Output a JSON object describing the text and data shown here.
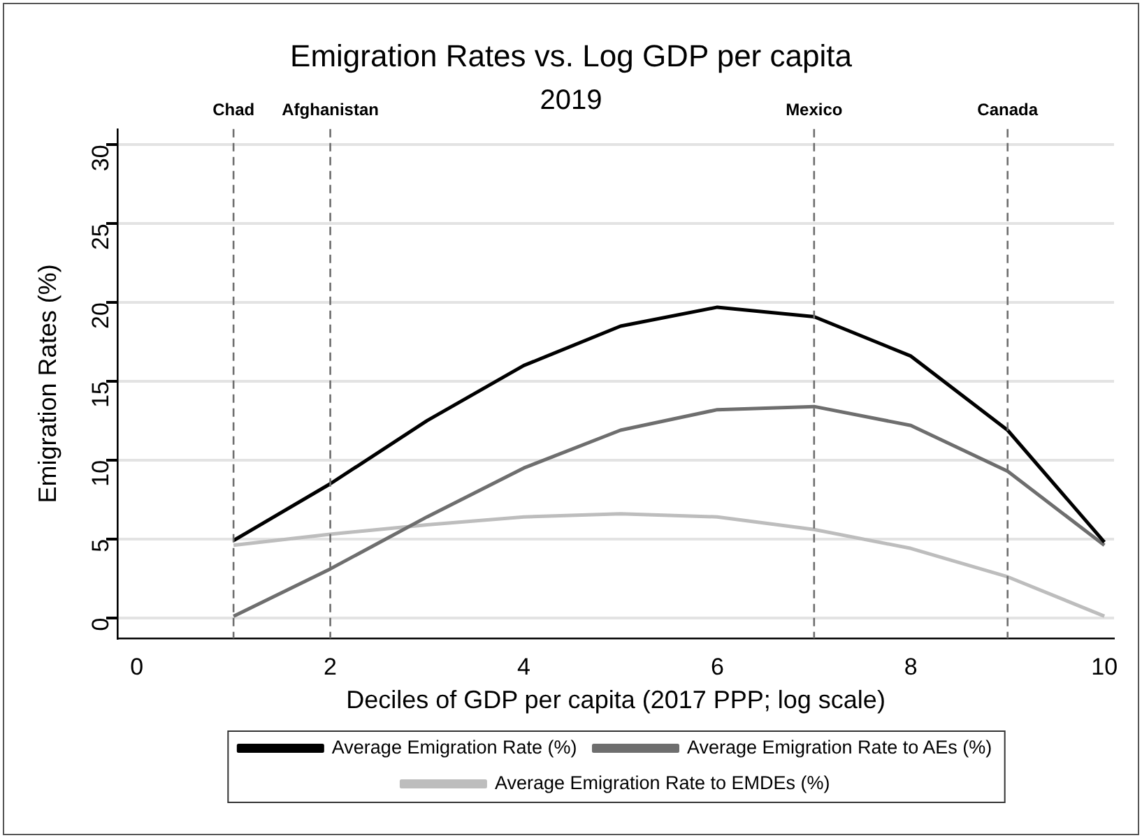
{
  "chart_data": {
    "type": "line",
    "title": "Emigration Rates vs. Log GDP per capita",
    "subtitle": "2019",
    "xlabel": "Deciles of GDP per capita (2017 PPP; log scale)",
    "ylabel": "Emigration Rates (%)",
    "x": [
      1,
      2,
      3,
      4,
      5,
      6,
      7,
      8,
      9,
      10
    ],
    "series": [
      {
        "name": "Average Emigration Rate (%)",
        "color": "#000000",
        "values": [
          4.9,
          8.5,
          12.5,
          16.0,
          18.5,
          19.7,
          19.1,
          16.6,
          11.9,
          4.8
        ]
      },
      {
        "name": "Average Emigration Rate to AEs (%)",
        "color": "#6e6e6e",
        "values": [
          0.1,
          3.1,
          6.4,
          9.5,
          11.9,
          13.2,
          13.4,
          12.2,
          9.3,
          4.6
        ]
      },
      {
        "name": "Average Emigration Rate to EMDEs (%)",
        "color": "#bdbdbd",
        "values": [
          4.6,
          5.3,
          5.9,
          6.4,
          6.6,
          6.4,
          5.6,
          4.4,
          2.6,
          0.1
        ]
      }
    ],
    "xlim": [
      -0.2,
      10.1
    ],
    "xticks": [
      0,
      2,
      4,
      6,
      8,
      10
    ],
    "ylim": [
      -1.3,
      31
    ],
    "yticks": [
      0,
      5,
      10,
      15,
      20,
      25,
      30
    ],
    "ref_lines": [
      {
        "axis": "x",
        "value": 1,
        "label": "Chad",
        "color": "#6e6e6e",
        "line_style": "dashed"
      },
      {
        "axis": "x",
        "value": 2,
        "label": "Afghanistan",
        "color": "#6e6e6e",
        "line_style": "dashed"
      },
      {
        "axis": "x",
        "value": 7,
        "label": "Mexico",
        "color": "#6e6e6e",
        "line_style": "dashed"
      },
      {
        "axis": "x",
        "value": 9,
        "label": "Canada",
        "color": "#6e6e6e",
        "line_style": "dashed"
      }
    ],
    "grid": "y",
    "legend": "bottom",
    "marker": "none",
    "line_style": "solid"
  }
}
